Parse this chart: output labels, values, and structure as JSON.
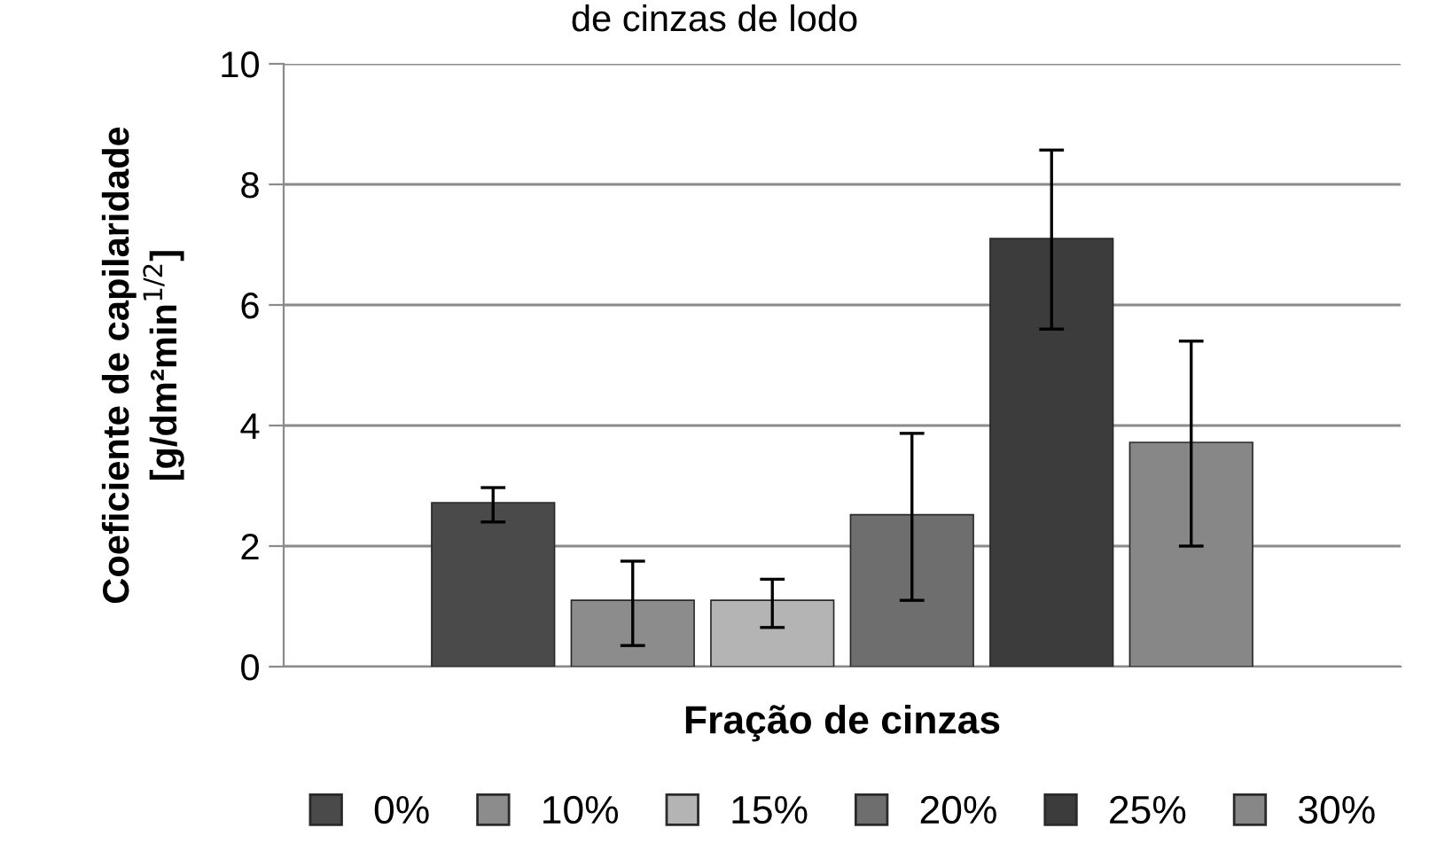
{
  "chart_data": {
    "type": "bar",
    "title": "de cinzas de lodo",
    "xlabel": "Fração de cinzas",
    "ylabel": "Coeficiente de capilaridade\n[g/dm²min$^{1/2}$]",
    "categories": [
      null
    ],
    "series": [
      {
        "name": "0%",
        "color": "#4a4a4a",
        "values": [
          2.72
        ],
        "errors": [
          [
            2.4,
            2.97
          ]
        ]
      },
      {
        "name": "10%",
        "color": "#8c8c8c",
        "values": [
          1.1
        ],
        "errors": [
          [
            0.35,
            1.75
          ]
        ]
      },
      {
        "name": "15%",
        "color": "#b4b4b4",
        "values": [
          1.1
        ],
        "errors": [
          [
            0.65,
            1.45
          ]
        ]
      },
      {
        "name": "20%",
        "color": "#6e6e6e",
        "values": [
          2.52
        ],
        "errors": [
          [
            1.1,
            3.87
          ]
        ]
      },
      {
        "name": "25%",
        "color": "#3c3c3c",
        "values": [
          7.1
        ],
        "errors": [
          [
            5.6,
            8.57
          ]
        ]
      },
      {
        "name": "30%",
        "color": "#878787",
        "values": [
          3.72
        ],
        "errors": [
          [
            2.0,
            5.4
          ]
        ]
      }
    ],
    "ylim": [
      0,
      10
    ],
    "yticks": [
      0,
      2,
      4,
      6,
      8,
      10
    ],
    "grid": "y",
    "legend": "bottom"
  }
}
